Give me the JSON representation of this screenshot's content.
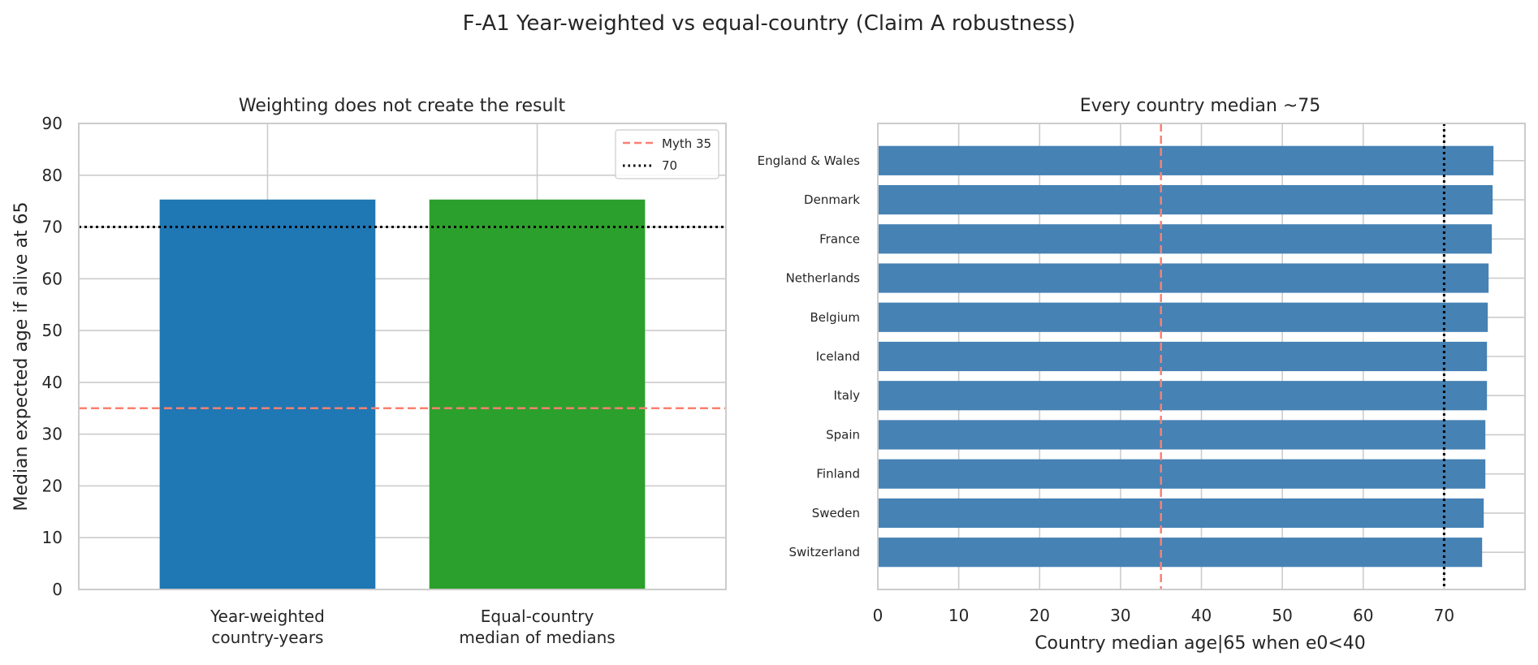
{
  "suptitle": "F-A1 Year-weighted vs equal-country (Claim A robustness)",
  "colors": {
    "grid": "#cccccc",
    "spine": "#cccccc",
    "myth_line": "#fa8072",
    "ref_line": "#000000",
    "country_bar": "#4682b4"
  },
  "chart_data": [
    {
      "type": "bar",
      "title": "Weighting does not create the result",
      "xlabel": "",
      "ylabel": "Median expected age if alive at 65",
      "categories": [
        [
          "Year-weighted",
          "country-years"
        ],
        [
          "Equal-country",
          "median of medians"
        ]
      ],
      "values": [
        75.3,
        75.3
      ],
      "bar_colors": [
        "#1f77b4",
        "#2ca02c"
      ],
      "ylim": [
        0,
        90
      ],
      "yticks": [
        0,
        10,
        20,
        30,
        40,
        50,
        60,
        70,
        80,
        90
      ],
      "grid": true,
      "reference_lines": [
        {
          "name": "Myth 35",
          "value": 35,
          "style": "dashed",
          "color": "#fa8072"
        },
        {
          "name": "70",
          "value": 70,
          "style": "dotted",
          "color": "#000000"
        }
      ],
      "legend": {
        "position": "top-right",
        "entries": [
          "Myth 35",
          "70"
        ]
      }
    },
    {
      "type": "bar",
      "orientation": "horizontal",
      "title": "Every country median ~75",
      "xlabel": "Country median age|65 when e0<40",
      "ylabel": "",
      "categories": [
        "England & Wales",
        "Denmark",
        "France",
        "Netherlands",
        "Belgium",
        "Iceland",
        "Italy",
        "Spain",
        "Finland",
        "Sweden",
        "Switzerland"
      ],
      "values": [
        76.1,
        76.0,
        75.9,
        75.5,
        75.4,
        75.3,
        75.3,
        75.1,
        75.1,
        74.9,
        74.7
      ],
      "xlim": [
        0,
        80
      ],
      "xticks": [
        0,
        10,
        20,
        30,
        40,
        50,
        60,
        70
      ],
      "grid": true,
      "reference_lines": [
        {
          "value": 35,
          "style": "dashed",
          "color": "#fa8072"
        },
        {
          "value": 70,
          "style": "dotted",
          "color": "#000000"
        }
      ]
    }
  ]
}
